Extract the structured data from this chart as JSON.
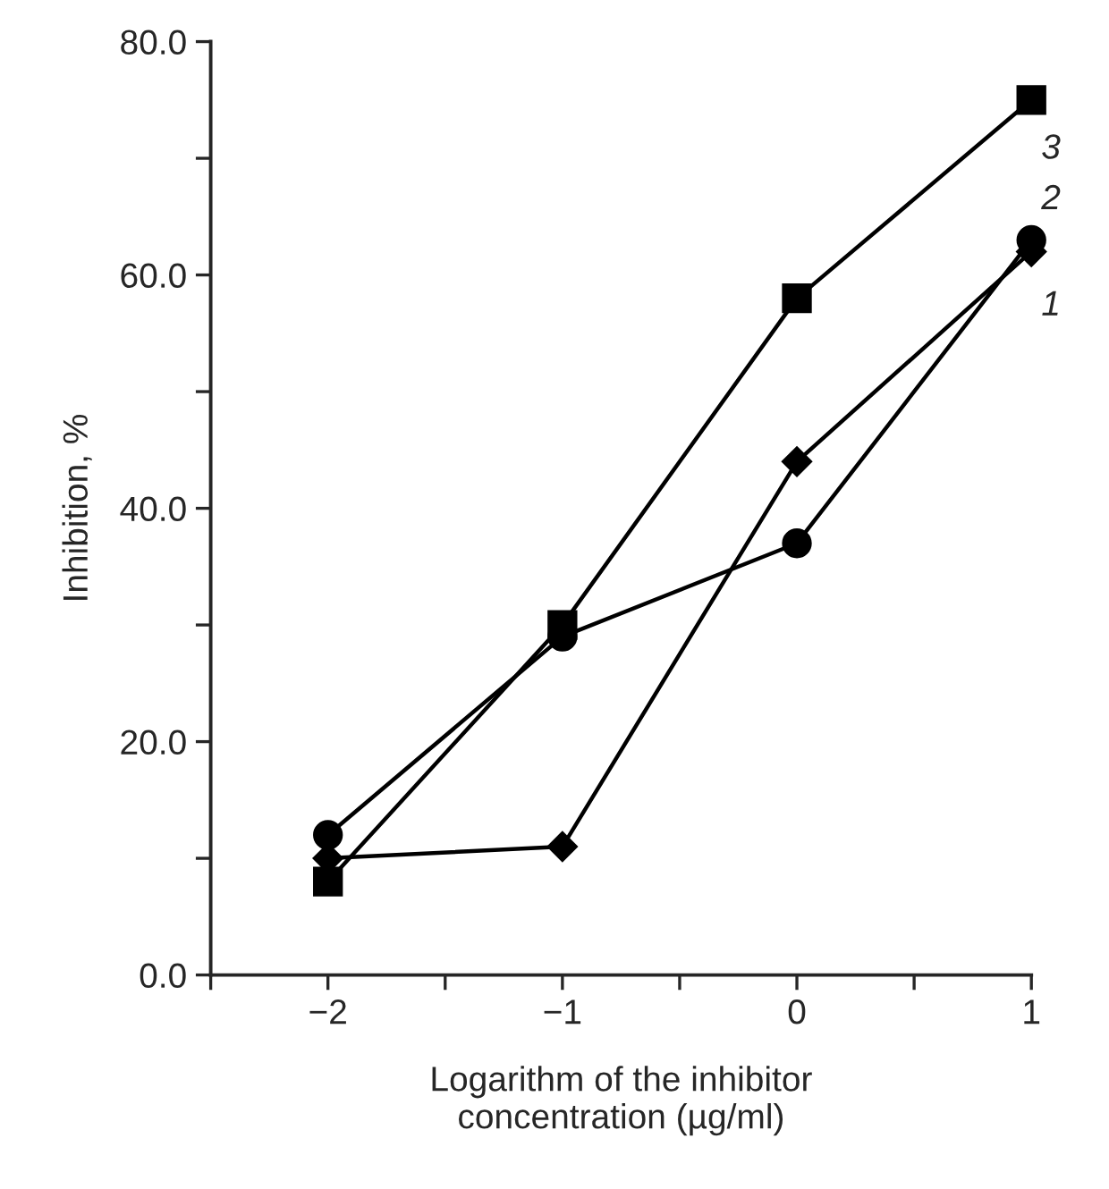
{
  "chart_data": {
    "type": "line",
    "xlabel": "Logarithm of the inhibitor\nconcentration (µg/ml)",
    "ylabel": "Inhibition, %",
    "x": [
      -2,
      -1,
      0,
      1
    ],
    "series": [
      {
        "name": "1",
        "color": "#000000",
        "marker": "diamond",
        "values": [
          10,
          11,
          44,
          62
        ]
      },
      {
        "name": "2",
        "color": "#000000",
        "marker": "circle",
        "values": [
          12,
          29,
          37,
          63
        ]
      },
      {
        "name": "3",
        "color": "#000000",
        "marker": "square",
        "values": [
          8,
          30,
          58,
          75
        ]
      }
    ],
    "xlim": [
      -2.5,
      1
    ],
    "xticks": [
      {
        "value": -2.5,
        "label": null
      },
      {
        "value": -2,
        "label": "−2"
      },
      {
        "value": -1.5,
        "label": null
      },
      {
        "value": -1,
        "label": "−1"
      },
      {
        "value": -0.5,
        "label": null
      },
      {
        "value": 0,
        "label": "0"
      },
      {
        "value": 0.5,
        "label": null
      },
      {
        "value": 1,
        "label": "1"
      }
    ],
    "ylim": [
      0,
      80
    ],
    "yticks": [
      {
        "value": 0,
        "label": "0.0"
      },
      {
        "value": 10,
        "label": null
      },
      {
        "value": 20,
        "label": "20.0"
      },
      {
        "value": 30,
        "label": null
      },
      {
        "value": 40,
        "label": "40.0"
      },
      {
        "value": 50,
        "label": null
      },
      {
        "value": 60,
        "label": "60.0"
      },
      {
        "value": 70,
        "label": null
      },
      {
        "value": 80,
        "label": "80.0"
      }
    ],
    "grid": false,
    "legend": false,
    "line_style": "solid"
  }
}
